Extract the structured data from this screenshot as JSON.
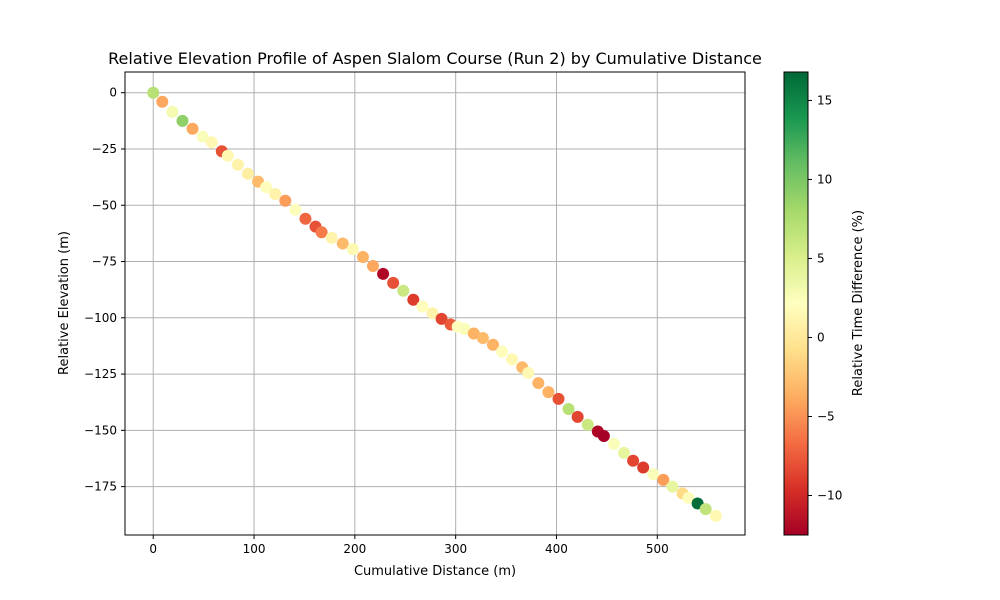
{
  "chart_data": {
    "type": "scatter",
    "title": "Relative Elevation Profile of Aspen Slalom Course (Run 2) by Cumulative Distance",
    "xlabel": "Cumulative Distance (m)",
    "ylabel": "Relative Elevation (m)",
    "colorbar_label": "Relative Time Difference (%)",
    "colormap": "RdYlGn",
    "grid": true,
    "xlim": [
      -28,
      587
    ],
    "ylim": [
      -196.5,
      9.2
    ],
    "clim": [
      -12.5,
      16.8
    ],
    "x_ticks": [
      0,
      100,
      200,
      300,
      400,
      500
    ],
    "y_ticks": [
      0,
      -25,
      -50,
      -75,
      -100,
      -125,
      -150,
      -175
    ],
    "c_ticks": [
      -10,
      -5,
      0,
      5,
      10,
      15
    ],
    "points": [
      {
        "x": 0,
        "y": 0,
        "c": 7
      },
      {
        "x": 9,
        "y": -4,
        "c": -4
      },
      {
        "x": 19,
        "y": -8.5,
        "c": 3
      },
      {
        "x": 29,
        "y": -12.5,
        "c": 9
      },
      {
        "x": 39,
        "y": -16,
        "c": -4
      },
      {
        "x": 49,
        "y": -19.5,
        "c": 2.5
      },
      {
        "x": 58,
        "y": -22,
        "c": 1.5
      },
      {
        "x": 68,
        "y": -26,
        "c": -8
      },
      {
        "x": 74,
        "y": -28,
        "c": 1.5
      },
      {
        "x": 84,
        "y": -32,
        "c": 1
      },
      {
        "x": 94,
        "y": -36,
        "c": 0.5
      },
      {
        "x": 104,
        "y": -39.5,
        "c": -3
      },
      {
        "x": 112,
        "y": -42,
        "c": 2
      },
      {
        "x": 121,
        "y": -45,
        "c": 1
      },
      {
        "x": 131,
        "y": -48,
        "c": -4.5
      },
      {
        "x": 141,
        "y": -52,
        "c": 2
      },
      {
        "x": 151,
        "y": -56,
        "c": -7
      },
      {
        "x": 161,
        "y": -59.5,
        "c": -8
      },
      {
        "x": 167,
        "y": -62,
        "c": -6
      },
      {
        "x": 177,
        "y": -64.5,
        "c": 1
      },
      {
        "x": 188,
        "y": -67,
        "c": -3
      },
      {
        "x": 198,
        "y": -69.5,
        "c": 1.5
      },
      {
        "x": 208,
        "y": -73,
        "c": -3.5
      },
      {
        "x": 218,
        "y": -77,
        "c": -4
      },
      {
        "x": 228,
        "y": -80.5,
        "c": -12
      },
      {
        "x": 238,
        "y": -84.5,
        "c": -8
      },
      {
        "x": 248,
        "y": -88,
        "c": 6
      },
      {
        "x": 258,
        "y": -92,
        "c": -9
      },
      {
        "x": 267,
        "y": -95,
        "c": 2
      },
      {
        "x": 277,
        "y": -98,
        "c": 1
      },
      {
        "x": 286,
        "y": -100.5,
        "c": -8.5
      },
      {
        "x": 295,
        "y": -103,
        "c": -7.5
      },
      {
        "x": 302,
        "y": -104,
        "c": 2
      },
      {
        "x": 309,
        "y": -105,
        "c": 2.5
      },
      {
        "x": 318,
        "y": -107,
        "c": -3.5
      },
      {
        "x": 327,
        "y": -109,
        "c": -3
      },
      {
        "x": 337,
        "y": -112,
        "c": -3.5
      },
      {
        "x": 346,
        "y": -115,
        "c": 2
      },
      {
        "x": 356,
        "y": -118.5,
        "c": 1.5
      },
      {
        "x": 366,
        "y": -122,
        "c": -3
      },
      {
        "x": 372,
        "y": -124.5,
        "c": 1.5
      },
      {
        "x": 382,
        "y": -129,
        "c": -3.5
      },
      {
        "x": 392,
        "y": -133,
        "c": -3.5
      },
      {
        "x": 402,
        "y": -136,
        "c": -8
      },
      {
        "x": 412,
        "y": -140.5,
        "c": 7
      },
      {
        "x": 421,
        "y": -144,
        "c": -8.5
      },
      {
        "x": 431,
        "y": -147.5,
        "c": 6
      },
      {
        "x": 441,
        "y": -150.5,
        "c": -12
      },
      {
        "x": 447,
        "y": -152.5,
        "c": -12.5
      },
      {
        "x": 457,
        "y": -156,
        "c": 2.5
      },
      {
        "x": 467,
        "y": -160,
        "c": 4
      },
      {
        "x": 476,
        "y": -163.5,
        "c": -8.5
      },
      {
        "x": 486,
        "y": -166.5,
        "c": -9
      },
      {
        "x": 496,
        "y": -169.5,
        "c": 2.5
      },
      {
        "x": 506,
        "y": -172,
        "c": -4.5
      },
      {
        "x": 515,
        "y": -175,
        "c": 4
      },
      {
        "x": 525,
        "y": -178,
        "c": -1
      },
      {
        "x": 531,
        "y": -180,
        "c": 2
      },
      {
        "x": 540,
        "y": -182.5,
        "c": 16.5
      },
      {
        "x": 548,
        "y": -185,
        "c": 6.5
      },
      {
        "x": 558,
        "y": -188,
        "c": 1.5
      }
    ]
  }
}
